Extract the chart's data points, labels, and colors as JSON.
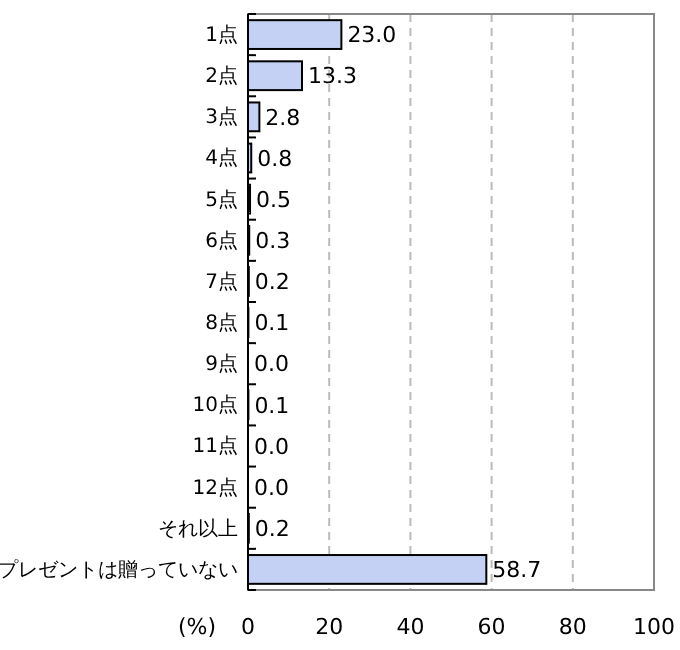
{
  "chart_data": {
    "type": "bar",
    "orientation": "horizontal",
    "xlabel": "(%)",
    "categories": [
      "1点",
      "2点",
      "3点",
      "4点",
      "5点",
      "6点",
      "7点",
      "8点",
      "9点",
      "10点",
      "11点",
      "12点",
      "それ以上",
      "プレゼントは贈っていない"
    ],
    "values": [
      23.0,
      13.3,
      2.8,
      0.8,
      0.5,
      0.3,
      0.2,
      0.1,
      0.0,
      0.1,
      0.0,
      0.0,
      0.2,
      58.7
    ],
    "value_labels": [
      "23.0",
      "13.3",
      "2.8",
      "0.8",
      "0.5",
      "0.3",
      "0.2",
      "0.1",
      "0.0",
      "0.1",
      "0.0",
      "0.0",
      "0.2",
      "58.7"
    ],
    "color": "#c4d0f4",
    "xlim": [
      0,
      100
    ],
    "xticks": [
      0,
      20,
      40,
      60,
      80,
      100
    ],
    "grid": "x"
  }
}
